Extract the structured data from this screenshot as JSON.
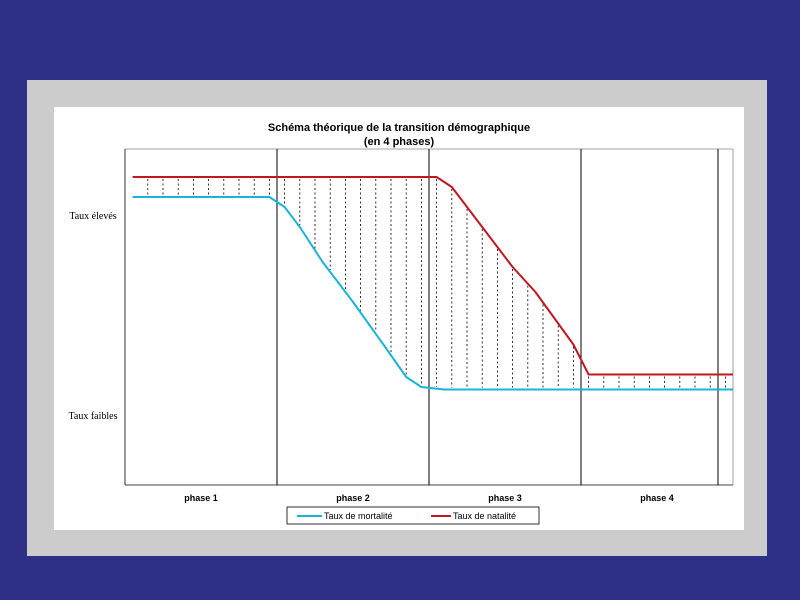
{
  "chart_data": {
    "type": "line",
    "title_line1": "Schéma théorique de la transition démographique",
    "title_line2": "(en 4 phases)",
    "y_labels": {
      "high": "Taux élevés",
      "low": "Taux faibles"
    },
    "phases": [
      "phase 1",
      "phase 2",
      "phase 3",
      "phase 4"
    ],
    "x_range": [
      0,
      4
    ],
    "y_range": [
      0,
      1
    ],
    "series": [
      {
        "name": "Taux de mortalité",
        "color": "#1ab4d8",
        "points": [
          [
            0.05,
            0.92
          ],
          [
            0.95,
            0.92
          ],
          [
            1.05,
            0.88
          ],
          [
            1.15,
            0.8
          ],
          [
            1.3,
            0.66
          ],
          [
            1.5,
            0.5
          ],
          [
            1.7,
            0.33
          ],
          [
            1.85,
            0.2
          ],
          [
            1.95,
            0.16
          ],
          [
            2.1,
            0.15
          ],
          [
            4.0,
            0.15
          ]
        ]
      },
      {
        "name": "Taux de natalité",
        "color": "#c0181f",
        "points": [
          [
            0.05,
            1.0
          ],
          [
            2.05,
            1.0
          ],
          [
            2.15,
            0.96
          ],
          [
            2.3,
            0.84
          ],
          [
            2.55,
            0.64
          ],
          [
            2.7,
            0.54
          ],
          [
            2.95,
            0.33
          ],
          [
            3.05,
            0.21
          ],
          [
            4.0,
            0.21
          ]
        ]
      }
    ],
    "hatched_between_series": true,
    "grid": false,
    "legend_position": "bottom"
  }
}
